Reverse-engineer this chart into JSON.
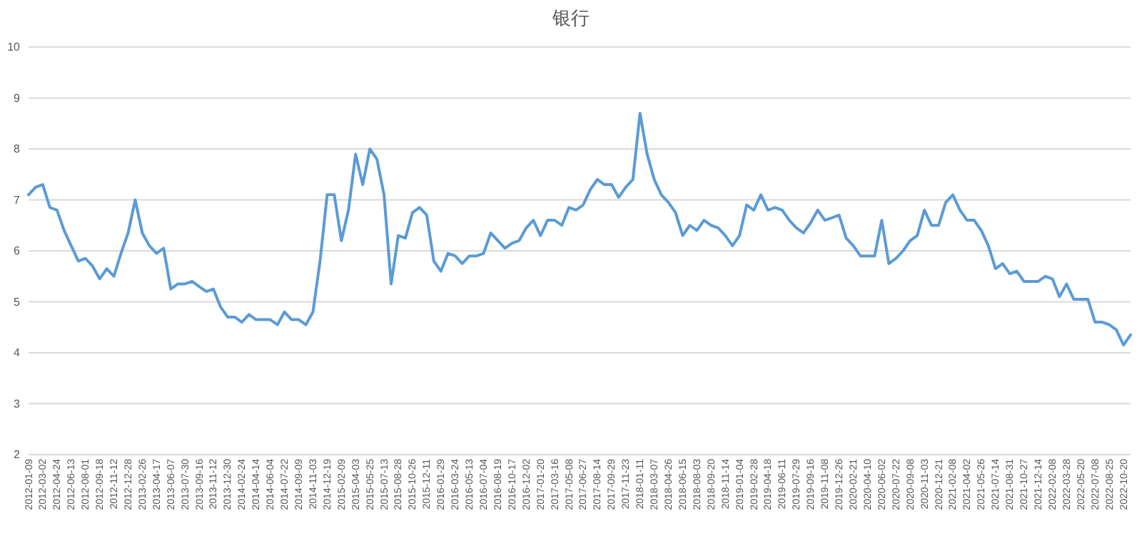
{
  "chart_data": {
    "type": "line",
    "title": "银行",
    "categories": [
      "2012-01-09",
      null,
      "2012-03-02",
      null,
      "2012-04-24",
      null,
      "2012-06-13",
      null,
      "2012-08-01",
      null,
      "2012-09-18",
      null,
      "2012-11-12",
      null,
      "2012-12-28",
      null,
      "2013-02-26",
      null,
      "2013-04-17",
      null,
      "2013-06-07",
      null,
      "2013-07-30",
      null,
      "2013-09-16",
      null,
      "2013-11-12",
      null,
      "2013-12-30",
      null,
      "2014-02-24",
      null,
      "2014-04-14",
      null,
      "2014-06-04",
      null,
      "2014-07-22",
      null,
      "2014-09-09",
      null,
      "2014-11-03",
      null,
      "2014-12-19",
      null,
      "2015-02-09",
      null,
      "2015-04-03",
      null,
      "2015-05-25",
      null,
      "2015-07-13",
      null,
      "2015-08-28",
      null,
      "2015-10-26",
      null,
      "2015-12-11",
      null,
      "2016-01-29",
      null,
      "2016-03-24",
      null,
      "2016-05-13",
      null,
      "2016-07-04",
      null,
      "2016-08-19",
      null,
      "2016-10-17",
      null,
      "2016-12-02",
      null,
      "2017-01-20",
      null,
      "2017-03-16",
      null,
      "2017-05-08",
      null,
      "2017-06-27",
      null,
      "2017-08-14",
      null,
      "2017-09-29",
      null,
      "2017-11-23",
      null,
      "2018-01-11",
      null,
      "2018-03-07",
      null,
      "2018-04-26",
      null,
      "2018-06-15",
      null,
      "2018-08-03",
      null,
      "2018-09-20",
      null,
      "2018-11-14",
      null,
      "2019-01-04",
      null,
      "2019-02-28",
      null,
      "2019-04-18",
      null,
      "2019-06-11",
      null,
      "2019-07-29",
      null,
      "2019-09-16",
      null,
      "2019-11-08",
      null,
      "2019-12-26",
      null,
      "2020-02-21",
      null,
      "2020-04-10",
      null,
      "2020-06-02",
      null,
      "2020-07-22",
      null,
      "2020-09-08",
      null,
      "2020-11-03",
      null,
      "2020-12-21",
      null,
      "2021-02-08",
      null,
      "2021-04-02",
      null,
      "2021-05-26",
      null,
      "2021-07-14",
      null,
      "2021-08-31",
      null,
      "2021-10-27",
      null,
      "2021-12-14",
      null,
      "2022-02-08",
      null,
      "2022-03-28",
      null,
      "2022-05-20",
      null,
      "2022-07-08",
      null,
      "2022-08-25",
      null,
      "2022-10-20",
      null
    ],
    "series": [
      {
        "color": "#5b9bd5",
        "values": [
          7.1,
          7.25,
          7.3,
          6.85,
          6.8,
          6.4,
          6.1,
          5.8,
          5.85,
          5.7,
          5.45,
          5.65,
          5.5,
          5.95,
          6.35,
          7.0,
          6.35,
          6.1,
          5.95,
          6.05,
          5.25,
          5.35,
          5.35,
          5.4,
          5.3,
          5.2,
          5.25,
          4.9,
          4.7,
          4.7,
          4.6,
          4.75,
          4.65,
          4.65,
          4.65,
          4.55,
          4.8,
          4.65,
          4.65,
          4.55,
          4.8,
          5.8,
          7.1,
          7.1,
          6.2,
          6.8,
          7.9,
          7.3,
          8.0,
          7.8,
          7.1,
          5.35,
          6.3,
          6.25,
          6.75,
          6.85,
          6.7,
          5.8,
          5.6,
          5.95,
          5.9,
          5.75,
          5.9,
          5.9,
          5.95,
          6.35,
          6.2,
          6.05,
          6.15,
          6.2,
          6.45,
          6.6,
          6.3,
          6.6,
          6.6,
          6.5,
          6.85,
          6.8,
          6.9,
          7.2,
          7.4,
          7.3,
          7.3,
          7.05,
          7.25,
          7.4,
          8.7,
          7.9,
          7.4,
          7.1,
          6.95,
          6.75,
          6.3,
          6.5,
          6.4,
          6.6,
          6.5,
          6.45,
          6.3,
          6.1,
          6.3,
          6.9,
          6.8,
          7.1,
          6.8,
          6.85,
          6.8,
          6.6,
          6.45,
          6.35,
          6.55,
          6.8,
          6.6,
          6.65,
          6.7,
          6.25,
          6.1,
          5.9,
          5.9,
          5.9,
          6.6,
          5.75,
          5.85,
          6.0,
          6.2,
          6.3,
          6.8,
          6.5,
          6.5,
          6.95,
          7.1,
          6.8,
          6.6,
          6.6,
          6.4,
          6.1,
          5.65,
          5.75,
          5.55,
          5.6,
          5.4,
          5.4,
          5.4,
          5.5,
          5.45,
          5.1,
          5.35,
          5.05,
          5.05,
          5.05,
          4.6,
          4.6,
          4.55,
          4.45,
          4.15,
          4.35
        ]
      }
    ],
    "ylim": [
      2,
      10
    ],
    "yticks": [
      2,
      3,
      4,
      5,
      6,
      7,
      8,
      9,
      10
    ],
    "grid": "y"
  }
}
